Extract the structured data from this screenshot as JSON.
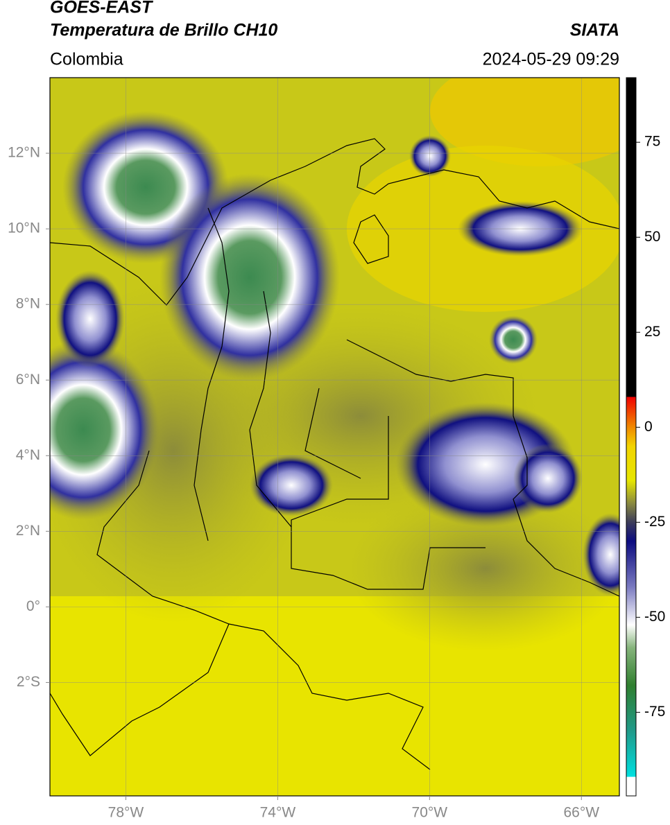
{
  "header": {
    "satellite": "GOES-EAST",
    "product": "Temperatura de Brillo CH10",
    "source": "SIATA",
    "region": "Colombia",
    "datetime": "2024-05-29 09:29"
  },
  "map": {
    "xlim": [
      -80,
      -65
    ],
    "ylim": [
      -5,
      14
    ],
    "grid": true,
    "xticks": [
      {
        "value": -78,
        "label": "78°W"
      },
      {
        "value": -74,
        "label": "74°W"
      },
      {
        "value": -70,
        "label": "70°W"
      },
      {
        "value": -66,
        "label": "66°W"
      }
    ],
    "yticks": [
      {
        "value": 12,
        "label": "12°N"
      },
      {
        "value": 10,
        "label": "10°N"
      },
      {
        "value": 8,
        "label": "8°N"
      },
      {
        "value": 6,
        "label": "6°N"
      },
      {
        "value": 4,
        "label": "4°N"
      },
      {
        "value": 2,
        "label": "2°N"
      },
      {
        "value": 0,
        "label": "0°"
      },
      {
        "value": -2,
        "label": "2°S"
      }
    ]
  },
  "colorbar": {
    "lim": [
      -97,
      92
    ],
    "ticks": [
      75,
      50,
      25,
      0,
      -25,
      -50,
      -75
    ],
    "stops": [
      {
        "value": -97,
        "color": "#ffffff"
      },
      {
        "value": -92,
        "color": "#ffffff"
      },
      {
        "value": -92,
        "color": "#00e0e0"
      },
      {
        "value": -80,
        "color": "#209a8a"
      },
      {
        "value": -68,
        "color": "#2f7f2f"
      },
      {
        "value": -58,
        "color": "#86b47c"
      },
      {
        "value": -52,
        "color": "#ffffff"
      },
      {
        "value": -42,
        "color": "#7a7ac0"
      },
      {
        "value": -30,
        "color": "#0c0c80"
      },
      {
        "value": -25,
        "color": "#3c3c5a"
      },
      {
        "value": -20,
        "color": "#8a8a40"
      },
      {
        "value": -14,
        "color": "#e6e600"
      },
      {
        "value": -5,
        "color": "#f2d400"
      },
      {
        "value": 0,
        "color": "#f08a00"
      },
      {
        "value": 8,
        "color": "#f00000"
      },
      {
        "value": 8,
        "color": "#000000"
      },
      {
        "value": 92,
        "color": "#000000"
      }
    ]
  }
}
